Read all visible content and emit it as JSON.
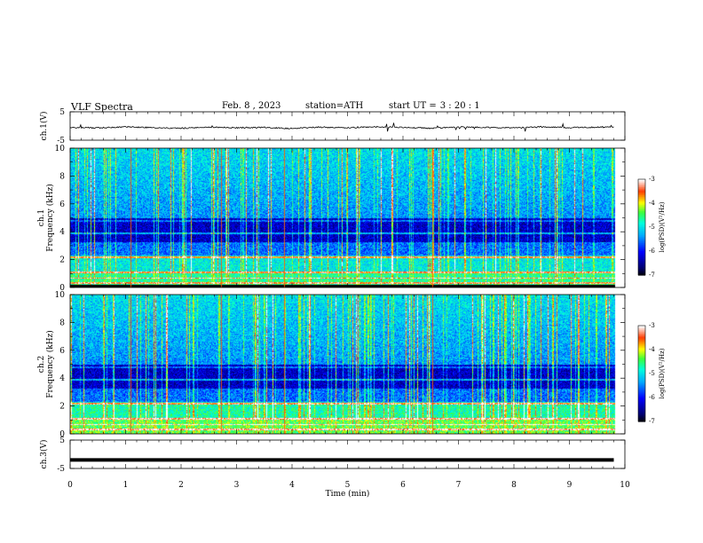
{
  "header": {
    "title": "VLF  Spectra",
    "date": "Feb. 8  , 2023",
    "station_label": "station=",
    "station": "ATH",
    "start_label": "start  UT  =",
    "start_time": "3  : 20 : 1"
  },
  "colorbar": {
    "label": "log(PSD)(V²/Hz)",
    "ticks": [
      "-3",
      "-4",
      "-5",
      "-6",
      "-7"
    ]
  },
  "chart_data": [
    {
      "type": "line",
      "ylabel": "ch.1(V)",
      "ylim": [
        -5,
        5
      ],
      "y_ticks": [
        "5",
        "-5"
      ],
      "description_level": "trace hovers near -0.5 V with small fluctuations",
      "x": [
        0,
        0.5,
        1,
        1.5,
        2,
        2.5,
        3,
        3.5,
        4,
        4.5,
        5,
        5.5,
        6,
        6.5,
        7,
        7.5,
        8,
        8.5,
        9,
        9.5,
        9.8
      ],
      "y": [
        -0.5,
        -0.7,
        -0.3,
        -0.6,
        -0.8,
        -0.4,
        -0.6,
        -0.5,
        -0.9,
        -0.4,
        -0.6,
        -0.3,
        -0.5,
        -0.8,
        -0.4,
        -0.5,
        -0.7,
        -0.3,
        -0.6,
        -0.4,
        -0.3
      ]
    },
    {
      "type": "heatmap",
      "ylabel": "ch.1 Frequency  (kHz)",
      "ylim": [
        0,
        10
      ],
      "y_ticks": [
        "10",
        "8",
        "6",
        "4",
        "2",
        "0"
      ],
      "xlim": [
        0,
        10
      ],
      "data_end_min": 9.8,
      "zlim": [
        -7,
        -3
      ]
    },
    {
      "type": "heatmap",
      "ylabel": "ch.2 Frequency  (kHz)",
      "ylim": [
        0,
        10
      ],
      "y_ticks": [
        "10",
        "8",
        "6",
        "4",
        "2",
        "0"
      ],
      "xlim": [
        0,
        10
      ],
      "data_end_min": 9.8,
      "zlim": [
        -7,
        -3
      ]
    },
    {
      "type": "line",
      "ylabel": "ch.3(V)",
      "ylim": [
        -5,
        5
      ],
      "y_ticks": [
        "5",
        "-5"
      ],
      "xlabel": "Time  (min)",
      "xlim": [
        0,
        10
      ],
      "x_ticks": [
        "0",
        "1",
        "2",
        "3",
        "4",
        "5",
        "6",
        "7",
        "8",
        "9",
        "10"
      ],
      "x": [
        0,
        9.8
      ],
      "y": [
        -2,
        -2
      ]
    }
  ]
}
